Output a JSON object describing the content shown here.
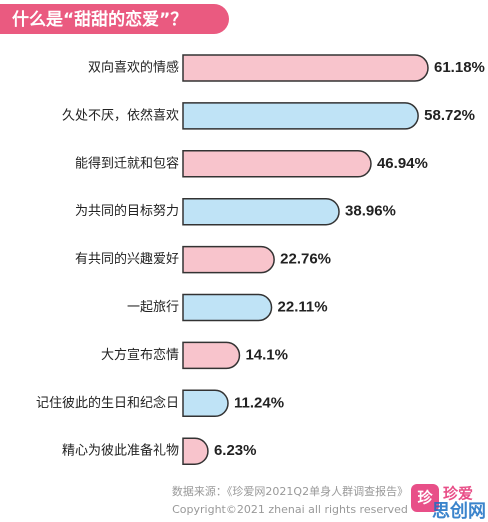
{
  "chart_data": {
    "type": "hbar",
    "title": "什么是“甜甜的恋爱”？",
    "categories": [
      "双向喜欢的情感",
      "久处不厌，依然喜欢",
      "能得到迁就和包容",
      "为共同的目标努力",
      "有共同的兴趣爱好",
      "一起旅行",
      "大方宣布恋情",
      "记住彼此的生日和纪念日",
      "精心为彼此准备礼物"
    ],
    "values": [
      61.18,
      58.72,
      46.94,
      38.96,
      22.76,
      22.11,
      14.1,
      11.24,
      6.23
    ],
    "value_labels": [
      "61.18%",
      "58.72%",
      "46.94%",
      "38.96%",
      "22.76%",
      "22.11%",
      "14.1%",
      "11.24%",
      "6.23%"
    ],
    "colors": [
      "#f8c4cc",
      "#bfe3f6",
      "#f8c4cc",
      "#bfe3f6",
      "#f8c4cc",
      "#bfe3f6",
      "#f8c4cc",
      "#bfe3f6",
      "#f8c4cc"
    ],
    "title_color": "#ea5a80",
    "source": "数据来源：《珍爱网2021Q2单身人群调查报告》",
    "copyright": "Copyright©2021  zhenai  all rights reserved"
  },
  "logo": {
    "icon": "珍",
    "text": "珍爱"
  },
  "watermark": "思创网"
}
